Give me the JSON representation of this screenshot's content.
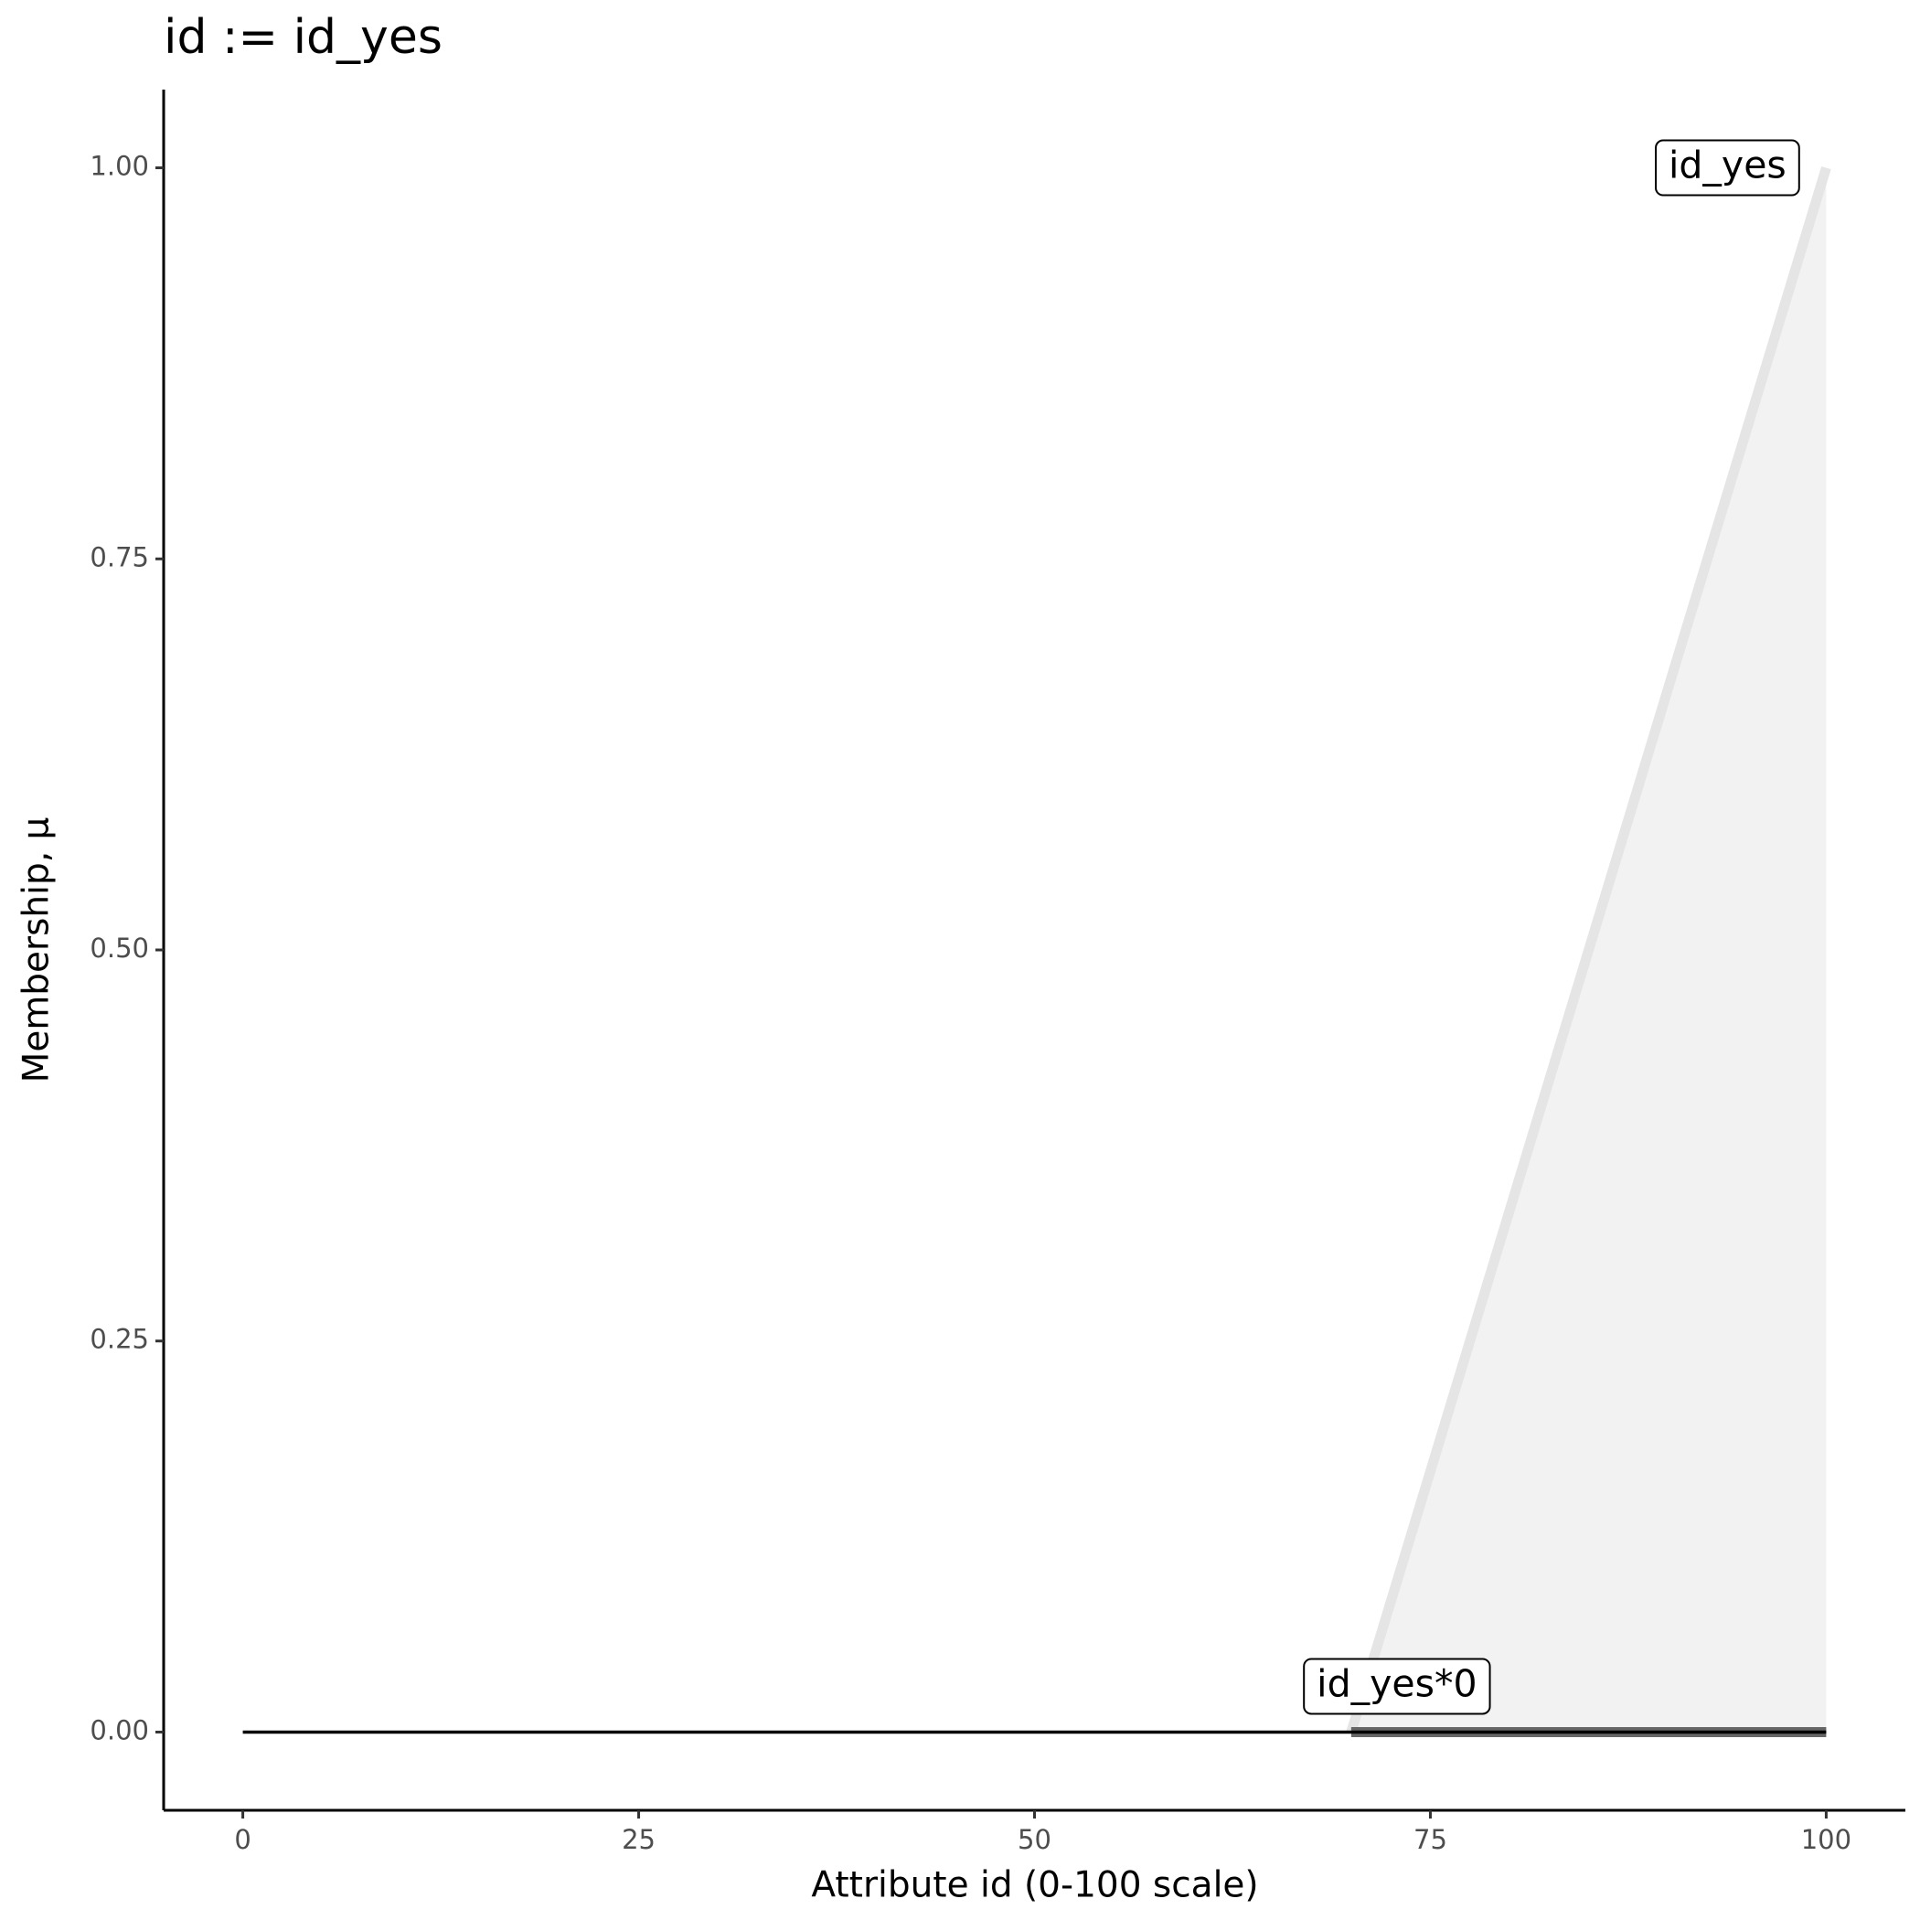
{
  "chart_data": {
    "type": "line",
    "title": "id := id_yes",
    "xlabel": "Attribute id (0-100 scale)",
    "ylabel": "Membership, μ",
    "xlim": [
      -5,
      105
    ],
    "ylim": [
      -0.05,
      1.05
    ],
    "xticks": [
      0,
      25,
      50,
      75,
      100
    ],
    "yticks": [
      {
        "value": 0,
        "label": "0.00"
      },
      {
        "value": 0.25,
        "label": "0.25"
      },
      {
        "value": 0.5,
        "label": "0.50"
      },
      {
        "value": 0.75,
        "label": "0.75"
      },
      {
        "value": 1,
        "label": "1.00"
      }
    ],
    "grid": false,
    "baseline": {
      "x": [
        0,
        100
      ],
      "values": [
        0,
        0
      ],
      "color": "#000000"
    },
    "series": [
      {
        "name": "id_yes",
        "x": [
          70,
          100
        ],
        "values": [
          0,
          1
        ],
        "color": "#e5e5e5",
        "fill": "#f2f2f2"
      },
      {
        "name": "id_yes*0",
        "x": [
          70,
          100
        ],
        "values": [
          0,
          0
        ],
        "color": "#666666"
      }
    ]
  }
}
